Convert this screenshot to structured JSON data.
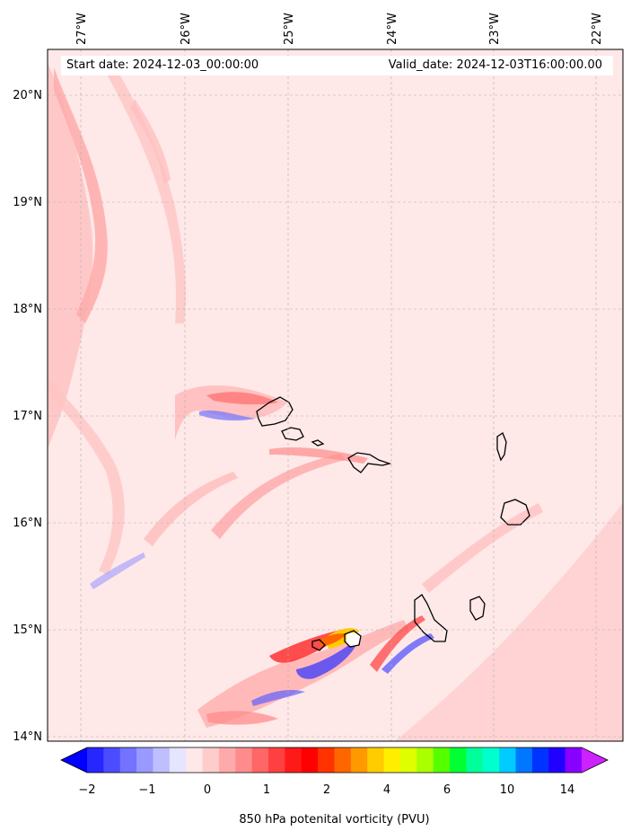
{
  "map": {
    "start_date": "Start date: 2024-12-03_00:00:00",
    "valid_date": "Valid_date: 2024-12-03T16:00:00.00",
    "lon_labels": [
      "27°W",
      "26°W",
      "25°W",
      "24°W",
      "23°W",
      "22°W"
    ],
    "lat_labels": [
      "20°N",
      "19°N",
      "18°N",
      "17°N",
      "16°N",
      "15°N",
      "14°N"
    ],
    "background_color": "#fee8e8"
  },
  "colorbar": {
    "title": "850 hPa potenital vorticity (PVU)",
    "tick_labels": [
      "−2",
      "−1",
      "0",
      "1",
      "2",
      "4",
      "6",
      "10",
      "14"
    ],
    "colors": [
      "#0000ff",
      "#2626ff",
      "#4c4cff",
      "#7373ff",
      "#9999ff",
      "#bfbfff",
      "#e5e5ff",
      "#ffe8e8",
      "#ffcccc",
      "#ffaaaa",
      "#ff8c8c",
      "#ff6666",
      "#ff4040",
      "#ff1a1a",
      "#ff0000",
      "#ff3300",
      "#ff6600",
      "#ff9900",
      "#ffcc00",
      "#ffee00",
      "#ddff00",
      "#aaff00",
      "#55ff00",
      "#00ff33",
      "#00ff99",
      "#00ffcc",
      "#00ccff",
      "#0077ff",
      "#0033ff",
      "#2200ff",
      "#8800ff",
      "#cc22ff"
    ]
  }
}
